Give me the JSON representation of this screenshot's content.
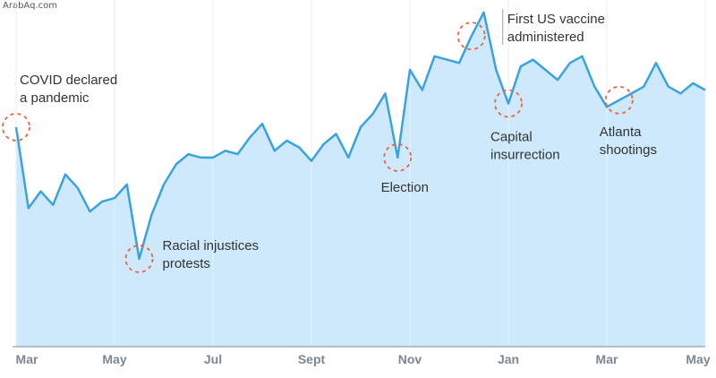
{
  "watermark": "ArabAq.com",
  "chart_data": {
    "type": "area",
    "title": "",
    "xlabel": "",
    "ylabel": "",
    "grid": "vertical",
    "x_ticks": [
      "Mar",
      "May",
      "Jul",
      "Sept",
      "Nov",
      "Jan",
      "Mar",
      "May"
    ],
    "x_range": [
      0,
      14
    ],
    "ylim": [
      0,
      100
    ],
    "colors": {
      "line": "#3aa3df",
      "fill": "#cde9fb",
      "marker": "#e8663f",
      "grid": "#d4d9de",
      "axis": "#7a8a9a"
    },
    "series": [
      {
        "x": [
          0,
          0.25,
          0.5,
          0.75,
          1.0,
          1.25,
          1.5,
          1.75,
          2.0,
          2.25,
          2.5,
          2.75,
          3.0,
          3.25,
          3.5,
          3.75,
          4.0,
          4.25,
          4.5,
          4.75,
          5.0,
          5.25,
          5.5,
          5.75,
          6.0,
          6.25,
          6.5,
          6.75,
          7.0,
          7.25,
          7.5,
          7.75,
          8.0,
          8.25,
          8.5,
          8.75,
          9.0,
          9.25,
          9.5,
          9.75,
          10.0,
          10.25,
          10.5,
          10.75,
          11.0,
          11.25,
          11.5,
          11.75,
          12.0,
          12.25,
          12.5,
          12.75,
          13.0,
          13.25,
          13.5,
          13.75,
          14.0
        ],
        "values": [
          65,
          41,
          46,
          42,
          51,
          47,
          40,
          43,
          44,
          48,
          26,
          39,
          48,
          54,
          57,
          56,
          56,
          58,
          57,
          62,
          66,
          58,
          61,
          59,
          55,
          60,
          63,
          56,
          65,
          69,
          75,
          56,
          82,
          76,
          86,
          85,
          84,
          92,
          99,
          82,
          72,
          83,
          85,
          82,
          79,
          84,
          86,
          77,
          71,
          73,
          75,
          77,
          84,
          77,
          75,
          78,
          76
        ]
      }
    ],
    "annotations": [
      {
        "label": "COVID declared a pandemic",
        "lines": [
          "COVID declared",
          "a pandemic"
        ],
        "x": 0,
        "y": 65
      },
      {
        "label": "Racial injustices protests",
        "lines": [
          "Racial injustices",
          "protests"
        ],
        "x": 2.5,
        "y": 26
      },
      {
        "label": "Election",
        "lines": [
          "Election"
        ],
        "x": 7.75,
        "y": 56
      },
      {
        "label": "First US vaccine administered",
        "lines": [
          "First US vaccine",
          "administered"
        ],
        "x": 9.25,
        "y": 92
      },
      {
        "label": "Capital insurrection",
        "lines": [
          "Capital",
          "insurrection"
        ],
        "x": 10.0,
        "y": 72
      },
      {
        "label": "Atlanta shootings",
        "lines": [
          "Atlanta",
          "shootings"
        ],
        "x": 12.25,
        "y": 73
      }
    ]
  }
}
